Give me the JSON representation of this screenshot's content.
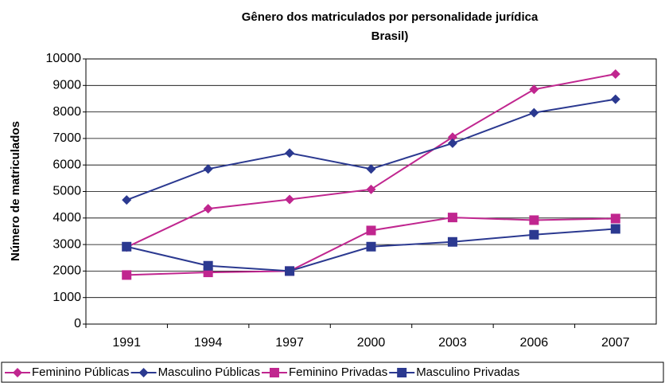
{
  "chart_data": {
    "type": "line",
    "title": [
      "Gênero dos matriculados por personalidade jurídica",
      "Brasil)"
    ],
    "y_label": "Número de matriculados",
    "categories": [
      "1991",
      "1994",
      "1997",
      "2000",
      "2003",
      "2006",
      "2007"
    ],
    "series": [
      {
        "name": "Feminino Públicas",
        "color": "#c0268f",
        "marker": "diamond",
        "values": [
          2900,
          4350,
          4700,
          5080,
          7050,
          8850,
          9430
        ]
      },
      {
        "name": "Masculino Públicas",
        "color": "#2b3990",
        "marker": "diamond",
        "values": [
          4680,
          5850,
          6450,
          5850,
          6820,
          7970,
          8480
        ]
      },
      {
        "name": "Feminino Privadas",
        "color": "#c0268f",
        "marker": "square",
        "values": [
          1850,
          1950,
          2000,
          3530,
          4020,
          3920,
          3980
        ]
      },
      {
        "name": "Masculino Privadas",
        "color": "#2b3990",
        "marker": "square",
        "values": [
          2920,
          2200,
          2000,
          2920,
          3100,
          3370,
          3590
        ]
      }
    ],
    "ylim": [
      0,
      10000
    ],
    "yticks": [
      0,
      1000,
      2000,
      3000,
      4000,
      5000,
      6000,
      7000,
      8000,
      9000,
      10000
    ],
    "grid": true,
    "legend": "bottom"
  }
}
